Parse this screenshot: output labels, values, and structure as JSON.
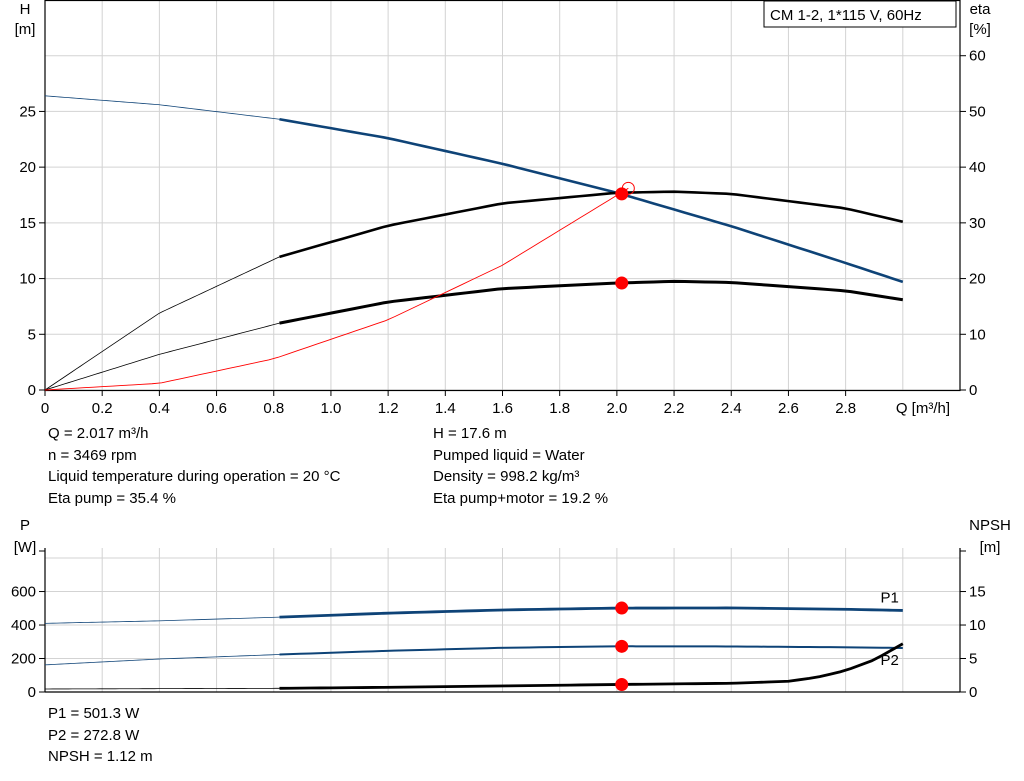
{
  "chart_data": [
    {
      "type": "line",
      "title": "CM 1-2, 1*115 V, 60Hz",
      "xlabel": "Q [m³/h]",
      "ylabel": "H\n[m]",
      "ylabel_right": "eta\n[%]",
      "xlim": [
        0,
        3.2
      ],
      "ylim": [
        0,
        35
      ],
      "ylim_right": [
        0,
        70
      ],
      "x_ticks": [
        "0",
        "0.2",
        "0.4",
        "0.6",
        "0.8",
        "1.0",
        "1.2",
        "1.4",
        "1.6",
        "1.8",
        "2.0",
        "2.2",
        "2.4",
        "2.6",
        "2.8"
      ],
      "y_ticks": [
        "0",
        "5",
        "10",
        "15",
        "20",
        "25"
      ],
      "y_ticks_right": [
        "0",
        "10",
        "20",
        "30",
        "40",
        "50",
        "60"
      ],
      "grid": true,
      "operating_range": [
        0.82,
        3.0
      ],
      "series": [
        {
          "axis": "left",
          "color": "#0e4377",
          "x": [
            0,
            0.4,
            0.82,
            1.2,
            1.6,
            2.0,
            2.4,
            2.8,
            3.0
          ],
          "values": [
            26.4,
            25.6,
            24.3,
            22.6,
            20.3,
            17.7,
            14.7,
            11.4,
            9.7
          ]
        },
        {
          "axis": "right",
          "color": "#000000",
          "x": [
            0,
            0.4,
            0.82,
            1.2,
            1.6,
            2.0,
            2.2,
            2.4,
            2.8,
            3.0
          ],
          "values": [
            0,
            13.8,
            23.9,
            29.5,
            33.5,
            35.4,
            35.6,
            35.2,
            32.6,
            30.2
          ]
        },
        {
          "axis": "right",
          "color": "#000000",
          "x": [
            0,
            0.4,
            0.82,
            1.2,
            1.6,
            2.0,
            2.2,
            2.4,
            2.8,
            3.0
          ],
          "values": [
            0,
            6.4,
            12.0,
            15.8,
            18.2,
            19.2,
            19.5,
            19.3,
            17.8,
            16.2
          ]
        },
        {
          "axis": "left",
          "color": "#ff0000",
          "x": [
            0,
            0.4,
            0.8,
            1.2,
            1.6,
            2.04
          ],
          "values": [
            0,
            0.6,
            2.8,
            6.3,
            11.2,
            18.1
          ]
        }
      ],
      "markers": [
        {
          "axis": "left",
          "x": 2.017,
          "y": 17.6
        },
        {
          "axis": "right",
          "x": 2.017,
          "y": 19.2
        }
      ]
    },
    {
      "type": "line",
      "ylabel": "P\n[W]",
      "ylabel_right": "NPSH\n[m]",
      "xlim": [
        0,
        3.2
      ],
      "ylim": [
        0,
        860
      ],
      "ylim_right": [
        0,
        21.5
      ],
      "y_ticks": [
        "0",
        "200",
        "400",
        "600"
      ],
      "y_ticks_right": [
        "0",
        "5",
        "10",
        "15"
      ],
      "grid": true,
      "series": [
        {
          "name": "P1",
          "axis": "left",
          "color": "#0e4377",
          "x": [
            0,
            0.4,
            0.82,
            1.2,
            1.6,
            2.0,
            2.4,
            2.8,
            3.0
          ],
          "values": [
            410,
            425,
            447,
            471,
            490,
            501,
            502,
            494,
            487
          ]
        },
        {
          "name": "P2",
          "axis": "left",
          "color": "#0e4377",
          "x": [
            0,
            0.4,
            0.82,
            1.2,
            1.6,
            2.0,
            2.4,
            2.8,
            3.0
          ],
          "values": [
            162,
            197,
            224,
            246,
            264,
            273,
            272,
            267,
            263
          ]
        },
        {
          "axis": "right",
          "color": "#000000",
          "x": [
            0,
            0.82,
            1.2,
            1.6,
            2.0,
            2.4,
            2.6,
            2.7,
            2.8,
            2.9,
            3.0
          ],
          "values": [
            0.45,
            0.55,
            0.7,
            0.9,
            1.12,
            1.3,
            1.6,
            2.2,
            3.2,
            4.8,
            7.2
          ]
        }
      ],
      "markers": [
        {
          "axis": "left",
          "x": 2.017,
          "y": 501.3
        },
        {
          "axis": "left",
          "x": 2.017,
          "y": 272.8
        },
        {
          "axis": "right",
          "x": 2.017,
          "y": 1.12
        }
      ]
    }
  ],
  "info_top_left": [
    "Q = 2.017 m³/h",
    "n = 3469 rpm",
    "Liquid temperature during operation = 20 °C",
    "Eta pump = 35.4 %"
  ],
  "info_top_right": [
    "H = 17.6 m",
    "Pumped liquid = Water",
    "Density = 998.2 kg/m³",
    "Eta pump+motor = 19.2 %"
  ],
  "info_bottom": [
    "P1 = 501.3 W",
    "P2 = 272.8 W",
    "NPSH = 1.12 m"
  ]
}
